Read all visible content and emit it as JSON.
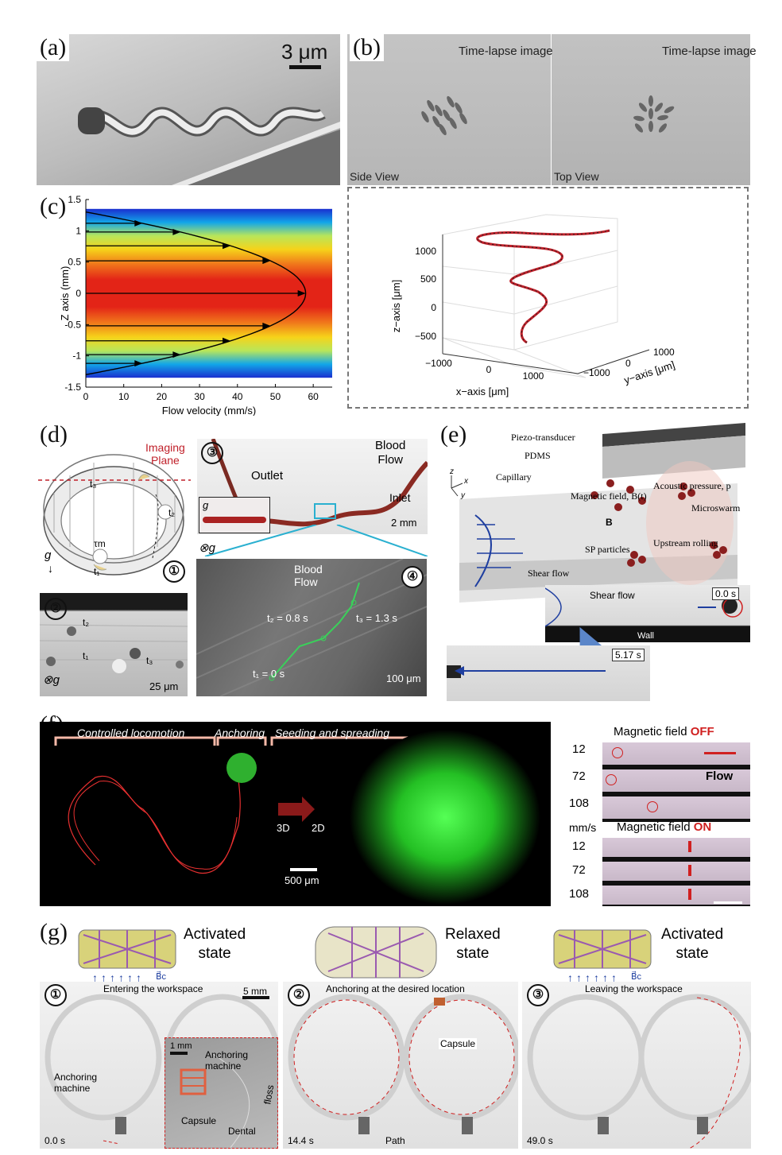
{
  "labels": {
    "a": "(a)",
    "b": "(b)",
    "c": "(c)",
    "d": "(d)",
    "e": "(e)",
    "f": "(f)",
    "g": "(g)"
  },
  "panel_a": {
    "scale": "3 μm"
  },
  "panel_b": {
    "timelapse_left": "Time-lapse image",
    "timelapse_right": "Time-lapse image",
    "side_view": "Side View",
    "top_view": "Top View"
  },
  "panel_b3d": {
    "zlabel": "z−axis [μm]",
    "xlabel": "x−axis [μm]",
    "ylabel": "y−axis [μm]",
    "zticks": [
      "1000",
      "500",
      "0",
      "−500"
    ],
    "xticks": [
      "−1000",
      "0",
      "1000"
    ],
    "yticks": [
      "1000",
      "0",
      "−1000"
    ],
    "line_color": "#c0202a"
  },
  "chart_data": {
    "type": "line",
    "ylabel": "Z axis (mm)",
    "xlabel": "Flow velocity (mm/s)",
    "xlim": [
      0,
      65
    ],
    "ylim": [
      -1.5,
      1.5
    ],
    "xticks": [
      0,
      10,
      20,
      30,
      40,
      50,
      60
    ],
    "yticks": [
      1.5,
      1,
      0.5,
      0,
      -0.5,
      -1,
      -1.5
    ],
    "series": [
      {
        "profile": "parabolic",
        "x": [
          0,
          20,
          40,
          52,
          58,
          52,
          40,
          20,
          0
        ],
        "y": [
          1.3,
          1.13,
          0.72,
          0.39,
          0,
          -0.39,
          -0.72,
          -1.13,
          -1.3
        ]
      }
    ],
    "arrows_y": [
      1.12,
      0.98,
      0.76,
      0.52,
      0,
      -0.52,
      -0.76,
      -0.98,
      -1.12
    ]
  },
  "panel_d": {
    "n1": "①",
    "n2": "②",
    "n3": "③",
    "n4": "④",
    "imaging": "Imaging",
    "plane": "Plane",
    "t1": "t₁",
    "t2": "t₂",
    "t3": "t₃",
    "tau": "τm",
    "g": "g",
    "outlet": "Outlet",
    "blood": "Blood",
    "flow": "Flow",
    "inlet": "Inlet",
    "scale_2mm": "2 mm",
    "scale_25": "25 μm",
    "scale_100": "100 μm",
    "otimes_g": "⊗g",
    "t1_time": "t₁ = 0 s",
    "t2_time": "t₂ = 0.8 s",
    "t3_time": "t₃ = 1.3 s",
    "blood_flow_1": "Blood",
    "blood_flow_2": "Flow"
  },
  "panel_e": {
    "piezo": "Piezo-transducer",
    "pdms": "PDMS",
    "capillary": "Capillary",
    "magnetic": "Magnetic field, B(t)",
    "acoustic": "Acoustic pressure, p",
    "microswarm": "Microswarm",
    "upstream": "Upstream rolling",
    "sp": "SP particles",
    "shear": "Shear flow",
    "b": "B",
    "shear2": "Shear flow",
    "wall": "Wall",
    "t0": "0.0 s",
    "t1": "5.17 s",
    "ax_z": "z",
    "ax_x": "x",
    "ax_y": "y"
  },
  "panel_f": {
    "controlled": "Controlled locomotion",
    "anchoring": "Anchoring",
    "seeding": "Seeding and spreading",
    "d3": "3D",
    "d2": "2D",
    "scale": "500 μm",
    "mf_off_label": "Magnetic field ",
    "mf_off": "OFF",
    "mf_on_label": "Magnetic field ",
    "mf_on": "ON",
    "speeds": [
      "12",
      "72",
      "108"
    ],
    "unit": "mm/s",
    "flow": "Flow"
  },
  "panel_g": {
    "activated": "Activated",
    "state": "state",
    "relaxed": "Relaxed",
    "bc": "B⃗c",
    "p1_title": "Entering the workspace",
    "p2_title": "Anchoring at the desired location",
    "p3_title": "Leaving the workspace",
    "scale": "5 mm",
    "scale_inset": "1 mm",
    "anchoring_machine": "Anchoring",
    "machine": "machine",
    "inset_anchoring": "Anchoring",
    "inset_machine": "machine",
    "capsule": "Capsule",
    "dental": "Dental",
    "floss": "floss",
    "capsule2": "Capsule",
    "path": "Path",
    "t1": "0.0 s",
    "t2": "14.4 s",
    "t3": "49.0 s"
  }
}
